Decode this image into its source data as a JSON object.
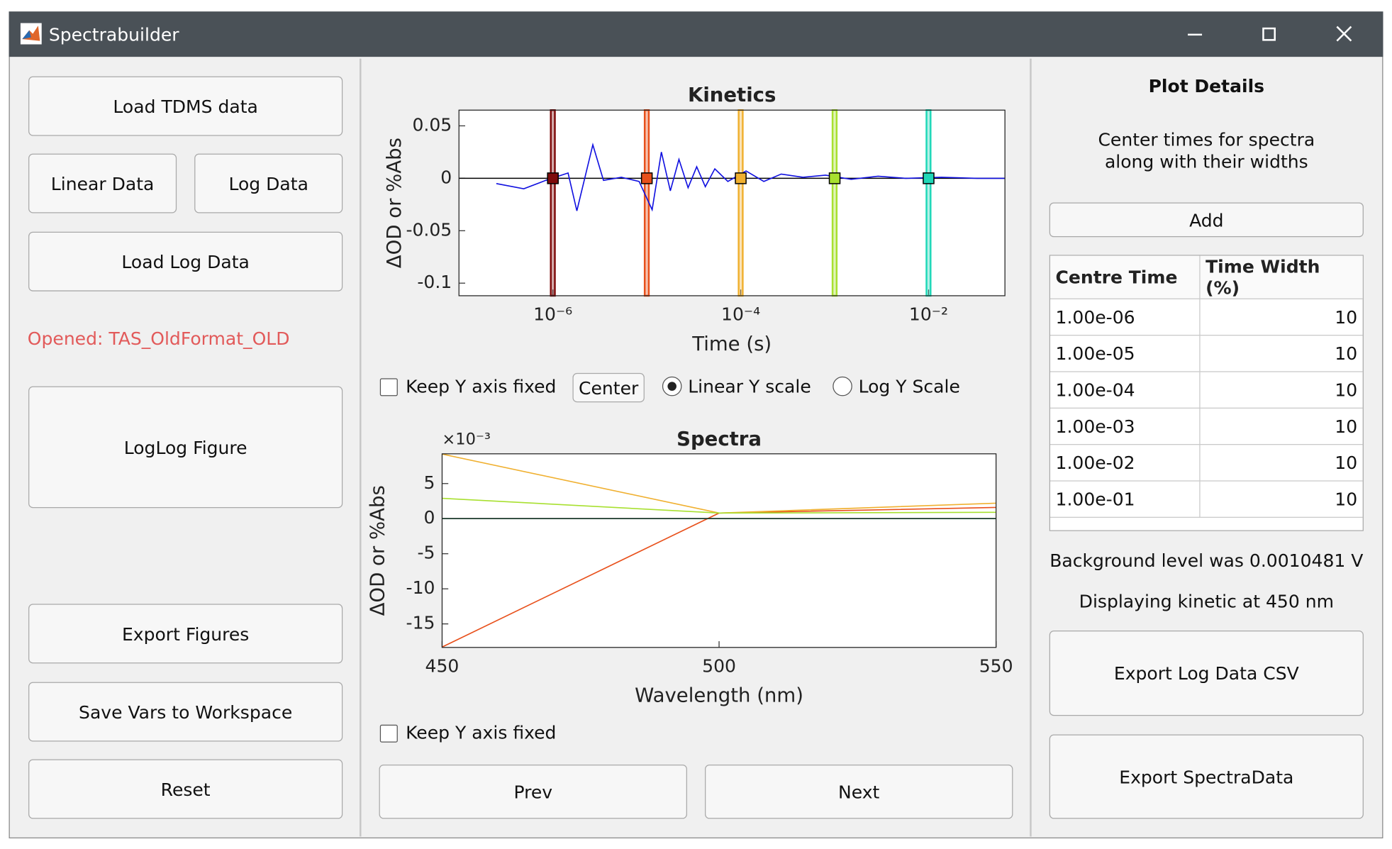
{
  "window": {
    "title": "Spectrabuilder"
  },
  "left_panel": {
    "buttons": [
      "Load TDMS data",
      "Linear Data",
      "Log Data",
      "Load Log Data",
      "LogLog Figure",
      "Export Figures",
      "Save Vars to Workspace",
      "Reset"
    ],
    "status": "Opened: TAS_OldFormat_OLD"
  },
  "center_panel": {
    "kinetics_controls": {
      "keep_y_fixed": "Keep Y axis fixed",
      "center": "Center",
      "linear_scale": "Linear Y scale",
      "log_scale": "Log Y Scale"
    },
    "spectra_controls": {
      "keep_y_fixed": "Keep Y axis fixed"
    },
    "buttons": [
      "Prev",
      "Next"
    ]
  },
  "chart_data": [
    {
      "type": "line",
      "title": "Kinetics",
      "x_label": "Time (s)",
      "y_label": "ΔOD or %Abs",
      "x_scale": "log",
      "xlim": [
        1e-07,
        0.065
      ],
      "ylim": [
        -0.112,
        0.065
      ],
      "xticks": [
        {
          "value": 1e-06,
          "label": "10⁻⁶"
        },
        {
          "value": 0.0001,
          "label": "10⁻⁴"
        },
        {
          "value": 0.01,
          "label": "10⁻²"
        }
      ],
      "yticks": [
        0.05,
        0,
        -0.05,
        -0.1
      ],
      "series": [
        {
          "color": "#1010e0",
          "x": [
            2.5e-07,
            4.9e-07,
            8.4e-07,
            1.45e-06,
            1.8e-06,
            2.66e-06,
            3.46e-06,
            5.35e-06,
            8.27e-06,
            1.14e-05,
            1.43e-05,
            1.78e-05,
            2.2e-05,
            2.75e-05,
            3.4e-05,
            4.2e-05,
            5.3e-05,
            7.3e-05,
            0.000114,
            0.000176,
            0.00027,
            0.00046,
            0.0008,
            0.0015,
            0.0029,
            0.0057,
            0.0137,
            0.033,
            0.065
          ],
          "values": [
            -0.005,
            -0.01,
            -0.002,
            0.005,
            -0.031,
            0.032,
            -0.002,
            0.001,
            -0.003,
            -0.03,
            0.025,
            -0.012,
            0.018,
            -0.009,
            0.011,
            -0.008,
            0.009,
            -0.003,
            0.007,
            -0.003,
            0.004,
            0.001,
            0.003,
            -0.001,
            0.002,
            0,
            0.001,
            0,
            0
          ]
        }
      ],
      "markers": {
        "x": [
          1e-06,
          1e-05,
          0.0001,
          0.001,
          0.01
        ],
        "values": [
          0,
          0,
          0,
          0,
          0
        ],
        "widths": [
          10,
          10,
          10,
          10,
          10
        ],
        "colors": [
          "#7e0b0b",
          "#e8501b",
          "#f0b030",
          "#a8e030",
          "#20d8b8"
        ]
      }
    },
    {
      "type": "line",
      "title": "Spectra",
      "x_label": "Wavelength (nm)",
      "y_label": "ΔOD or %Abs",
      "y_multiplier": "×10⁻³",
      "xlim": [
        450,
        550
      ],
      "ylim": [
        -18.35,
        9.24
      ],
      "xticks": [
        450,
        500,
        550
      ],
      "yticks": [
        5,
        0,
        -5,
        -10,
        -15
      ],
      "x": [
        450,
        500,
        550
      ],
      "series": [
        {
          "color": "#7e0b0b",
          "values": [
            0,
            0,
            0
          ]
        },
        {
          "color": "#e8501b",
          "values": [
            -18.3,
            0.8,
            1.6
          ]
        },
        {
          "color": "#f0b030",
          "values": [
            9.2,
            0.8,
            2.2
          ]
        },
        {
          "color": "#a8e030",
          "values": [
            2.9,
            0.8,
            0.9
          ]
        },
        {
          "color": "#103828",
          "values": [
            0,
            0,
            0
          ]
        }
      ]
    }
  ],
  "right_panel": {
    "title": "Plot Details",
    "description": [
      "Center times for spectra",
      "along with their widths"
    ],
    "add": "Add",
    "table": {
      "columns": [
        "Centre Time",
        "Time Width (%)"
      ],
      "rows": [
        [
          "1.00e-06",
          10
        ],
        [
          "1.00e-05",
          10
        ],
        [
          "1.00e-04",
          10
        ],
        [
          "1.00e-03",
          10
        ],
        [
          "1.00e-02",
          10
        ],
        [
          "1.00e-01",
          10
        ]
      ]
    },
    "background": "Background level was 0.0010481 V",
    "displaying": "Displaying kinetic at 450 nm",
    "buttons": [
      "Export Log Data CSV",
      "Export SpectraData"
    ]
  }
}
